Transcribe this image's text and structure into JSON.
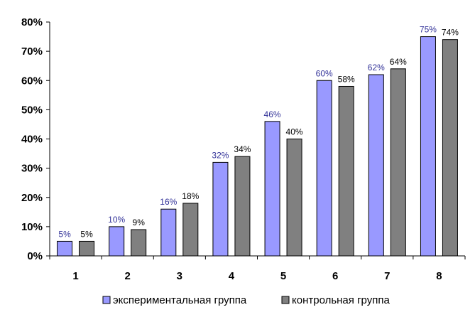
{
  "chart_data": {
    "type": "bar",
    "categories": [
      "1",
      "2",
      "3",
      "4",
      "5",
      "6",
      "7",
      "8"
    ],
    "series": [
      {
        "name": "экспериментальная группа",
        "values": [
          5,
          10,
          16,
          32,
          46,
          60,
          62,
          75
        ],
        "labels": [
          "5%",
          "10%",
          "16%",
          "32%",
          "46%",
          "60%",
          "62%",
          "75%"
        ],
        "color": "#9999ff",
        "label_color": "#333399"
      },
      {
        "name": "контрольная группа",
        "values": [
          5,
          9,
          18,
          34,
          40,
          58,
          64,
          74
        ],
        "labels": [
          "5%",
          "9%",
          "18%",
          "34%",
          "40%",
          "58%",
          "64%",
          "74%"
        ],
        "color": "#808080",
        "label_color": "#000000"
      }
    ],
    "yticks": [
      "0%",
      "10%",
      "20%",
      "30%",
      "40%",
      "50%",
      "60%",
      "70%",
      "80%"
    ],
    "ylim": [
      0,
      80
    ],
    "ystep": 10,
    "grid": false,
    "legend": "bottom",
    "title": "",
    "xlabel": "",
    "ylabel": ""
  }
}
